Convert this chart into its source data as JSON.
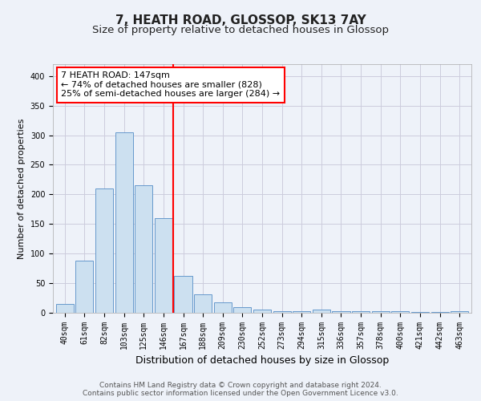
{
  "title": "7, HEATH ROAD, GLOSSOP, SK13 7AY",
  "subtitle": "Size of property relative to detached houses in Glossop",
  "xlabel": "Distribution of detached houses by size in Glossop",
  "ylabel": "Number of detached properties",
  "bar_labels": [
    "40sqm",
    "61sqm",
    "82sqm",
    "103sqm",
    "125sqm",
    "146sqm",
    "167sqm",
    "188sqm",
    "209sqm",
    "230sqm",
    "252sqm",
    "273sqm",
    "294sqm",
    "315sqm",
    "336sqm",
    "357sqm",
    "378sqm",
    "400sqm",
    "421sqm",
    "442sqm",
    "463sqm"
  ],
  "bar_values": [
    15,
    88,
    210,
    305,
    215,
    160,
    63,
    31,
    18,
    9,
    5,
    3,
    3,
    5,
    3,
    3,
    3,
    3,
    1,
    1,
    3
  ],
  "bar_color": "#cce0f0",
  "bar_edge_color": "#6699cc",
  "vline_x": 5.5,
  "vline_color": "red",
  "annotation_text": "7 HEATH ROAD: 147sqm\n← 74% of detached houses are smaller (828)\n25% of semi-detached houses are larger (284) →",
  "annotation_box_color": "white",
  "annotation_box_edge": "red",
  "ylim": [
    0,
    420
  ],
  "yticks": [
    0,
    50,
    100,
    150,
    200,
    250,
    300,
    350,
    400
  ],
  "grid_color": "#ccccdd",
  "bg_color": "#eef2f9",
  "footer_text": "Contains HM Land Registry data © Crown copyright and database right 2024.\nContains public sector information licensed under the Open Government Licence v3.0.",
  "title_fontsize": 11,
  "subtitle_fontsize": 9.5,
  "xlabel_fontsize": 9,
  "ylabel_fontsize": 8,
  "tick_fontsize": 7,
  "annotation_fontsize": 8,
  "footer_fontsize": 6.5
}
